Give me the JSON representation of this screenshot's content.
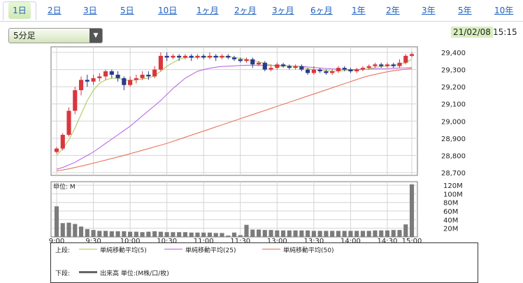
{
  "tabs": [
    "1日",
    "2日",
    "3日",
    "5日",
    "10日",
    "1ヶ月",
    "2ヶ月",
    "3ヶ月",
    "6ヶ月",
    "1年",
    "2年",
    "3年",
    "5年",
    "10年"
  ],
  "active_tab": "1日",
  "interval_select": "5分足",
  "date": "21/02/08",
  "time": "15:15",
  "legend": {
    "upper_label": "上段:",
    "sma5": "単純移動平均(5)",
    "sma25": "単純移動平均(25)",
    "sma50": "単純移動平均(50)",
    "lower_label": "下段:",
    "volume": "出来高 単位:(M株/口/枚)"
  },
  "volume_unit_label": "単位: M",
  "colors": {
    "up": "#d9363e",
    "down": "#2a3a8c",
    "sma5": "#a6c84f",
    "sma25": "#b45ce0",
    "sma50": "#e8684a",
    "volume": "#7b7b7b",
    "tab_link": "#1f5fbf",
    "date_bg": "#d8efc0"
  },
  "chart_data": [
    {
      "type": "candlestick",
      "x_ticks": [
        "9:00",
        "9:30",
        "10:00",
        "10:30",
        "11:00",
        "11:30",
        "13:00",
        "13:30",
        "14:00",
        "14:30",
        "15:00"
      ],
      "y_ticks": [
        "28,700",
        "28,800",
        "28,900",
        "29,000",
        "29,100",
        "29,200",
        "29,300",
        "29,400"
      ],
      "ylim": [
        28700,
        29400
      ],
      "candles": [
        [
          28820,
          28840,
          28810,
          28850
        ],
        [
          28840,
          28920,
          28830,
          28930
        ],
        [
          28920,
          29060,
          28910,
          29080
        ],
        [
          29060,
          29180,
          29040,
          29200
        ],
        [
          29180,
          29240,
          29150,
          29260
        ],
        [
          29240,
          29230,
          29200,
          29270
        ],
        [
          29230,
          29250,
          29210,
          29270
        ],
        [
          29250,
          29260,
          29230,
          29280
        ],
        [
          29260,
          29290,
          29240,
          29300
        ],
        [
          29290,
          29270,
          29250,
          29300
        ],
        [
          29270,
          29250,
          29230,
          29290
        ],
        [
          29250,
          29210,
          29180,
          29260
        ],
        [
          29210,
          29240,
          29200,
          29260
        ],
        [
          29240,
          29250,
          29220,
          29270
        ],
        [
          29250,
          29270,
          29240,
          29290
        ],
        [
          29270,
          29260,
          29240,
          29290
        ],
        [
          29260,
          29300,
          29250,
          29320
        ],
        [
          29300,
          29380,
          29290,
          29400
        ],
        [
          29380,
          29370,
          29350,
          29400
        ],
        [
          29370,
          29380,
          29360,
          29390
        ],
        [
          29380,
          29370,
          29350,
          29390
        ],
        [
          29370,
          29380,
          29360,
          29390
        ],
        [
          29380,
          29370,
          29350,
          29390
        ],
        [
          29370,
          29380,
          29360,
          29390
        ],
        [
          29380,
          29370,
          29360,
          29390
        ],
        [
          29370,
          29380,
          29360,
          29400
        ],
        [
          29380,
          29370,
          29350,
          29390
        ],
        [
          29370,
          29380,
          29360,
          29390
        ],
        [
          29380,
          29370,
          29360,
          29390
        ],
        [
          29370,
          29360,
          29350,
          29380
        ],
        [
          29360,
          29350,
          29340,
          29370
        ],
        [
          29350,
          29360,
          29340,
          29370
        ],
        [
          29360,
          29330,
          29310,
          29370
        ],
        [
          29330,
          29340,
          29320,
          29350
        ],
        [
          29340,
          29300,
          29290,
          29350
        ],
        [
          29300,
          29310,
          29290,
          29330
        ],
        [
          29310,
          29330,
          29300,
          29340
        ],
        [
          29330,
          29320,
          29310,
          29340
        ],
        [
          29320,
          29310,
          29300,
          29330
        ],
        [
          29310,
          29320,
          29300,
          29330
        ],
        [
          29320,
          29300,
          29290,
          29330
        ],
        [
          29300,
          29280,
          29270,
          29310
        ],
        [
          29280,
          29300,
          29270,
          29320
        ],
        [
          29300,
          29290,
          29280,
          29310
        ],
        [
          29290,
          29280,
          29270,
          29300
        ],
        [
          29280,
          29290,
          29270,
          29300
        ],
        [
          29290,
          29310,
          29280,
          29320
        ],
        [
          29310,
          29300,
          29290,
          29320
        ],
        [
          29300,
          29290,
          29280,
          29310
        ],
        [
          29290,
          29300,
          29280,
          29310
        ],
        [
          29300,
          29310,
          29290,
          29320
        ],
        [
          29310,
          29320,
          29300,
          29330
        ],
        [
          29320,
          29330,
          29310,
          29340
        ],
        [
          29330,
          29320,
          29310,
          29340
        ],
        [
          29320,
          29330,
          29310,
          29340
        ],
        [
          29330,
          29320,
          29310,
          29340
        ],
        [
          29320,
          29340,
          29310,
          29360
        ],
        [
          29340,
          29380,
          29330,
          29390
        ],
        [
          29380,
          29390,
          29370,
          29400
        ]
      ],
      "sma5": [
        28800,
        28840,
        28890,
        28960,
        29040,
        29120,
        29180,
        29220,
        29240,
        29250,
        29250,
        29240,
        29235,
        29240,
        29245,
        29250,
        29265,
        29290,
        29320,
        29340,
        29360,
        29370,
        29370,
        29372,
        29374,
        29375,
        29375,
        29375,
        29375,
        29372,
        29365,
        29358,
        29352,
        29345,
        29335,
        29325,
        29320,
        29320,
        29322,
        29320,
        29315,
        29305,
        29300,
        29298,
        29295,
        29290,
        29292,
        29294,
        29296,
        29298,
        29300,
        29305,
        29312,
        29318,
        29322,
        29325,
        29330,
        29340,
        29360
      ],
      "sma25": [
        28720,
        28730,
        28745,
        28760,
        28780,
        28800,
        28820,
        28845,
        28870,
        28895,
        28920,
        28945,
        28970,
        29000,
        29030,
        29060,
        29090,
        29120,
        29155,
        29190,
        29220,
        29250,
        29270,
        29290,
        29300,
        29308,
        29314,
        29318,
        29320,
        29322,
        29324,
        29325,
        29325,
        29325,
        29325,
        29325,
        29324,
        29323,
        29322,
        29320,
        29318,
        29315,
        29312,
        29309,
        29306,
        29304,
        29302,
        29301,
        29300,
        29301,
        29302,
        29303,
        29304,
        29305,
        29306,
        29308,
        29309,
        29310,
        29312
      ],
      "sma50": [
        28710,
        28715,
        28722,
        28730,
        28738,
        28746,
        28755,
        28764,
        28773,
        28782,
        28791,
        28800,
        28810,
        28820,
        28830,
        28840,
        28850,
        28860,
        28870,
        28882,
        28894,
        28906,
        28918,
        28930,
        28942,
        28954,
        28966,
        28978,
        28990,
        29002,
        29014,
        29026,
        29038,
        29050,
        29062,
        29074,
        29086,
        29098,
        29110,
        29122,
        29134,
        29146,
        29158,
        29170,
        29182,
        29194,
        29206,
        29218,
        29230,
        29242,
        29254,
        29264,
        29272,
        29280,
        29287,
        29293,
        29298,
        29302,
        29305
      ]
    },
    {
      "type": "bar",
      "ylabel": "単位: M",
      "y_ticks": [
        "20M",
        "40M",
        "60M",
        "80M",
        "100M",
        "120M"
      ],
      "ylim": [
        0,
        125
      ],
      "values": [
        71,
        32,
        33,
        30,
        24,
        18,
        16,
        14,
        14,
        13,
        13,
        13,
        12,
        12,
        11,
        12,
        13,
        12,
        11,
        11,
        11,
        11,
        10,
        10,
        10,
        10,
        9,
        9,
        3,
        10,
        4,
        28,
        17,
        17,
        16,
        16,
        15,
        15,
        15,
        15,
        15,
        15,
        14,
        14,
        14,
        14,
        14,
        14,
        14,
        14,
        14,
        14,
        15,
        15,
        15,
        16,
        16,
        29,
        122
      ]
    }
  ]
}
